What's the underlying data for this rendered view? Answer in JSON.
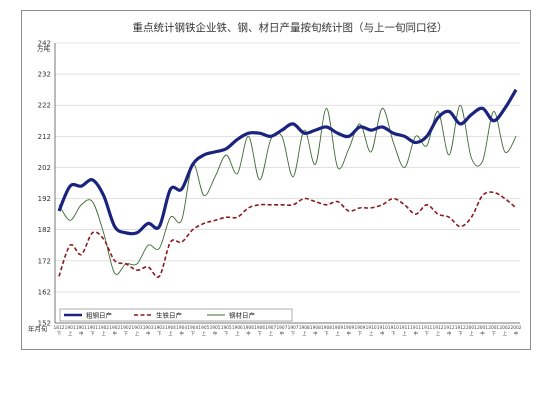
{
  "chart_data": {
    "type": "line",
    "title": "重点统计钢铁企业铁、钢、材日产量按旬统计图（与上一旬同口径）",
    "ylabel": "万吨",
    "xlabel": "年月旬",
    "ylim": [
      152,
      242
    ],
    "yticks": [
      152,
      162,
      172,
      182,
      192,
      202,
      212,
      222,
      232,
      242
    ],
    "x_top": [
      "1812",
      "1901",
      "1901",
      "1901",
      "1902",
      "1902",
      "1902",
      "1903",
      "1903",
      "1903",
      "1904",
      "1904",
      "1904",
      "1905",
      "1905",
      "1905",
      "1906",
      "1906",
      "1906",
      "1907",
      "1907",
      "1907",
      "1908",
      "1908",
      "1908",
      "1909",
      "1909",
      "1909",
      "1910",
      "1910",
      "1910",
      "1911",
      "1911",
      "1911",
      "1912",
      "1912",
      "1912",
      "2001",
      "2001",
      "2001",
      "2002",
      "2002"
    ],
    "x_bottom": [
      "下",
      "上",
      "中",
      "下",
      "上",
      "中",
      "下",
      "上",
      "中",
      "下",
      "上",
      "中",
      "下",
      "上",
      "中",
      "下",
      "上",
      "中",
      "下",
      "上",
      "中",
      "下",
      "上",
      "中",
      "下",
      "上",
      "中",
      "下",
      "上",
      "中",
      "下",
      "上",
      "中",
      "下",
      "上",
      "中",
      "下",
      "上",
      "中",
      "下",
      "上",
      "中"
    ],
    "legend_position": "bottom-left",
    "series": [
      {
        "name": "粗钢日产",
        "color": "#1a237e",
        "style": "thick-solid",
        "values": [
          188,
          196,
          196,
          198,
          193,
          183,
          181,
          181,
          184,
          183,
          195,
          195,
          203,
          206,
          207,
          208,
          211,
          213,
          213,
          212,
          214,
          216,
          213,
          214,
          215,
          213,
          212,
          215,
          214,
          215,
          213,
          212,
          210,
          212,
          218,
          220,
          216,
          219,
          221,
          217,
          221,
          227
        ]
      },
      {
        "name": "生铁日产",
        "color": "#8b1a1a",
        "style": "dashed",
        "values": [
          167,
          177,
          174,
          181,
          179,
          172,
          171,
          169,
          170,
          167,
          178,
          178,
          182,
          184,
          185,
          186,
          186,
          189,
          190,
          190,
          190,
          190,
          192,
          191,
          190,
          191,
          188,
          189,
          189,
          190,
          192,
          190,
          187,
          190,
          187,
          186,
          183,
          186,
          193,
          194,
          192,
          189
        ]
      },
      {
        "name": "钢材日产",
        "color": "#3d6b35",
        "style": "thin-solid",
        "values": [
          190,
          185,
          190,
          191,
          181,
          168,
          171,
          171,
          177,
          176,
          186,
          185,
          203,
          193,
          199,
          206,
          200,
          212,
          198,
          211,
          212,
          199,
          214,
          203,
          221,
          202,
          208,
          216,
          207,
          221,
          210,
          202,
          212,
          209,
          220,
          206,
          222,
          205,
          204,
          220,
          207,
          212
        ]
      }
    ]
  }
}
